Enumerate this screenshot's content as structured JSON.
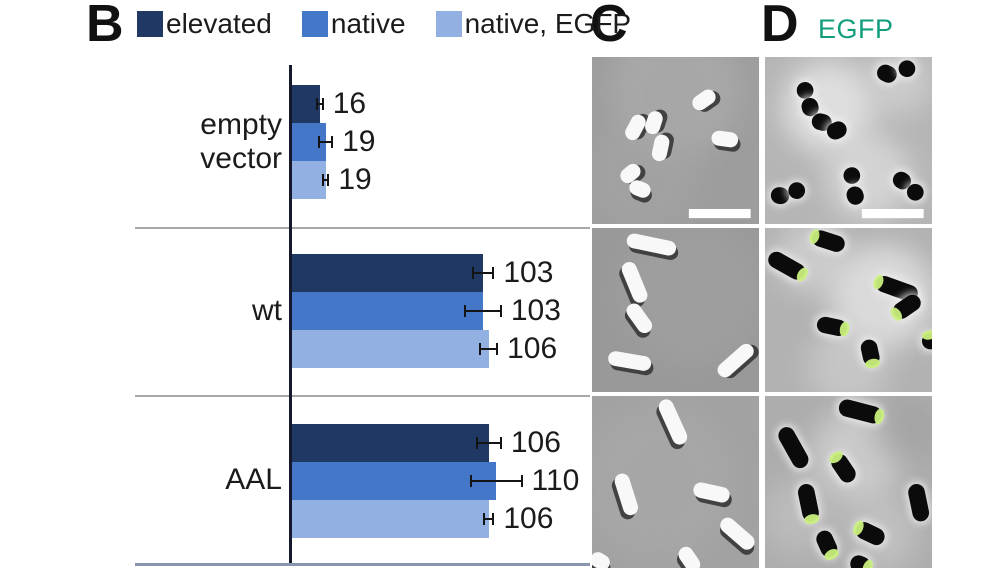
{
  "figure": {
    "panel_b_label": "B",
    "panel_c_label": "C",
    "panel_d_label": "D",
    "panel_d_sublabel": "EGFP"
  },
  "colors": {
    "elevated": "#1f3864",
    "native": "#4577c8",
    "native_egfp": "#92b1e2",
    "axis": "#16182c",
    "separator": "#a9a9a9",
    "baseline": "#8795ae",
    "text": "#1b1b1b",
    "egfp_label": "#129e7c",
    "egfp_tip": "#c9ef7d"
  },
  "chart_data": {
    "type": "bar",
    "orientation": "horizontal",
    "title": "",
    "xlabel": "",
    "ylabel": "",
    "categories": [
      "empty vector",
      "wt",
      "AAL"
    ],
    "series": [
      {
        "name": "elevated",
        "color": "#1f3864",
        "values": [
          16,
          103,
          106
        ],
        "errors": [
          2,
          6,
          7
        ]
      },
      {
        "name": "native",
        "color": "#4577c8",
        "values": [
          19,
          103,
          110
        ],
        "errors": [
          4,
          10,
          14
        ]
      },
      {
        "name": "native, EGFP",
        "color": "#92b1e2",
        "values": [
          19,
          106,
          106
        ],
        "errors": [
          2,
          5,
          3
        ]
      }
    ],
    "xlim": [
      0,
      160
    ],
    "value_labels": true,
    "error_bars": true,
    "grid": false,
    "legend_position": "top"
  },
  "micrographs": {
    "c_rows": [
      {
        "bg": "#9d9d9d",
        "style": "dic",
        "scalebar": true,
        "blotches": [
          [
            50,
            20,
            40,
            "#b2b2b2",
            0.5
          ],
          [
            30,
            70,
            35,
            "#a6a6a6",
            0.5
          ]
        ],
        "cells": [
          [
            68,
            26,
            15,
            9,
            -35
          ],
          [
            27,
            42,
            16,
            9,
            -62
          ],
          [
            38,
            39,
            14,
            9,
            -72
          ],
          [
            42,
            54,
            16,
            9,
            -78
          ],
          [
            80,
            50,
            16,
            9,
            8
          ],
          [
            24,
            70,
            13,
            9,
            -40
          ],
          [
            29,
            80,
            13,
            9,
            22
          ]
        ]
      },
      {
        "bg": "#999999",
        "style": "dic",
        "scalebar": false,
        "blotches": [
          [
            60,
            40,
            45,
            "#a3a3a3",
            0.5
          ]
        ],
        "cells": [
          [
            36,
            11,
            30,
            9,
            12
          ],
          [
            25,
            34,
            26,
            9,
            68
          ],
          [
            28,
            56,
            20,
            9,
            55
          ],
          [
            23,
            82,
            26,
            9,
            10
          ],
          [
            87,
            81,
            26,
            9,
            -42
          ]
        ]
      },
      {
        "bg": "#a2a2a2",
        "style": "dic",
        "scalebar": false,
        "blotches": [
          [
            40,
            50,
            45,
            "#ababab",
            0.5
          ]
        ],
        "cells": [
          [
            48,
            16,
            28,
            9,
            65
          ],
          [
            20,
            58,
            25,
            9,
            72
          ],
          [
            72,
            57,
            22,
            9,
            12
          ],
          [
            87,
            81,
            24,
            9,
            40
          ],
          [
            58,
            96,
            16,
            9,
            55
          ],
          [
            5,
            97,
            12,
            9,
            30
          ]
        ]
      }
    ],
    "d_rows": [
      {
        "bg": "#b5b5b5",
        "style": "dark",
        "scalebar": true,
        "blotches": [
          [
            38,
            30,
            28,
            "#e8e8e8",
            0.8
          ],
          [
            62,
            72,
            26,
            "#e0e0e0",
            0.7
          ],
          [
            80,
            15,
            20,
            "#dadada",
            0.6
          ]
        ],
        "cells": [
          [
            73,
            10,
            12,
            10,
            25,
            0
          ],
          [
            85,
            7,
            10,
            10,
            -15,
            0
          ],
          [
            24,
            20,
            10,
            10,
            55,
            0
          ],
          [
            27,
            30,
            11,
            10,
            75,
            0
          ],
          [
            34,
            39,
            12,
            10,
            15,
            0
          ],
          [
            43,
            44,
            12,
            10,
            -25,
            0
          ],
          [
            9,
            83,
            11,
            10,
            10,
            0
          ],
          [
            19,
            80,
            10,
            10,
            -20,
            0
          ],
          [
            52,
            71,
            10,
            10,
            80,
            0
          ],
          [
            54,
            83,
            11,
            10,
            70,
            0
          ],
          [
            82,
            74,
            11,
            10,
            35,
            0
          ],
          [
            90,
            81,
            10,
            10,
            -40,
            0
          ]
        ]
      },
      {
        "bg": "#b2b2b2",
        "style": "dark",
        "scalebar": false,
        "blotches": [
          [
            70,
            42,
            32,
            "#e4e4e4",
            0.8
          ],
          [
            28,
            18,
            22,
            "#dcdcdc",
            0.6
          ],
          [
            50,
            85,
            25,
            "#d8d8d8",
            0.5
          ]
        ],
        "cells": [
          [
            38,
            8,
            20,
            10,
            18,
            -1
          ],
          [
            13,
            23,
            24,
            10,
            30,
            1
          ],
          [
            79,
            37,
            26,
            10,
            20,
            -1
          ],
          [
            85,
            48,
            18,
            10,
            -35,
            -1
          ],
          [
            40,
            60,
            18,
            10,
            12,
            1
          ],
          [
            63,
            76,
            16,
            10,
            78,
            1
          ],
          [
            99,
            69,
            10,
            10,
            80,
            -1
          ]
        ]
      },
      {
        "bg": "#adadad",
        "style": "dark",
        "scalebar": false,
        "blotches": [
          [
            55,
            35,
            28,
            "#d2d2d2",
            0.8
          ],
          [
            20,
            70,
            22,
            "#c4c4c4",
            0.6
          ],
          [
            85,
            20,
            20,
            "#9e9e9e",
            0.6
          ],
          [
            70,
            80,
            22,
            "#cccccc",
            0.6
          ]
        ],
        "cells": [
          [
            57,
            9,
            26,
            10,
            14,
            1
          ],
          [
            17,
            30,
            26,
            10,
            60,
            0
          ],
          [
            26,
            62,
            22,
            10,
            78,
            1
          ],
          [
            47,
            42,
            18,
            10,
            55,
            -1
          ],
          [
            37,
            86,
            16,
            10,
            65,
            1
          ],
          [
            63,
            80,
            18,
            10,
            25,
            -1
          ],
          [
            92,
            62,
            22,
            10,
            78,
            0
          ],
          [
            57,
            98,
            12,
            10,
            20,
            1
          ]
        ]
      }
    ]
  }
}
